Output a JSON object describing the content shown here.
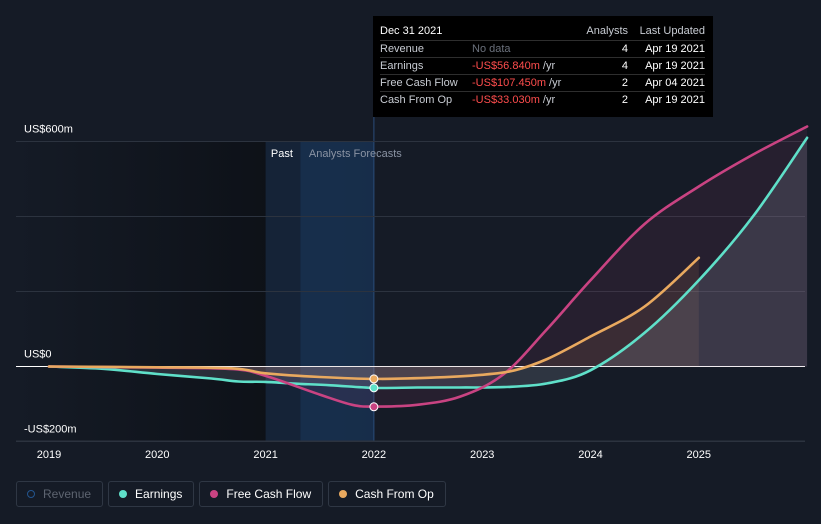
{
  "tooltip": {
    "date": "Dec 31 2021",
    "col_analysts": "Analysts",
    "col_updated": "Last Updated",
    "rows": [
      {
        "name": "Revenue",
        "value": "No data",
        "unit": "",
        "analysts": "4",
        "updated": "Apr 19 2021"
      },
      {
        "name": "Earnings",
        "value": "-US$56.840m",
        "unit": "/yr",
        "analysts": "4",
        "updated": "Apr 19 2021"
      },
      {
        "name": "Free Cash Flow",
        "value": "-US$107.450m",
        "unit": "/yr",
        "analysts": "2",
        "updated": "Apr 04 2021"
      },
      {
        "name": "Cash From Op",
        "value": "-US$33.030m",
        "unit": "/yr",
        "analysts": "2",
        "updated": "Apr 19 2021"
      }
    ]
  },
  "legend": [
    {
      "label": "Revenue",
      "color": "#2a6ebb",
      "active": false
    },
    {
      "label": "Earnings",
      "color": "#5fe0c9",
      "active": true
    },
    {
      "label": "Free Cash Flow",
      "color": "#c94382",
      "active": true
    },
    {
      "label": "Cash From Op",
      "color": "#e9a95f",
      "active": true
    }
  ],
  "chart_data": {
    "type": "line",
    "ylim": [
      -200,
      600
    ],
    "y_tick_labels": [
      "US$600m",
      "US$0",
      "-US$200m"
    ],
    "x_tick_labels": [
      "2019",
      "2020",
      "2021",
      "2022",
      "2023",
      "2024",
      "2025"
    ],
    "past_label": "Past",
    "forecast_label": "Analysts Forecasts",
    "grid": true,
    "series": [
      {
        "name": "Earnings",
        "color": "#5fe0c9",
        "x": [
          2019.0,
          2019.5,
          2020.0,
          2020.5,
          2020.75,
          2021.0,
          2021.3,
          2021.6,
          2022.0,
          2022.4,
          2022.8,
          2023.2,
          2023.6,
          2024.0,
          2024.5,
          2025.0,
          2025.5,
          2026.0
        ],
        "y": [
          0,
          -6,
          -20,
          -32,
          -40,
          -41,
          -46,
          -50,
          -57,
          -56,
          -56,
          -55,
          -45,
          -10,
          90,
          230,
          400,
          610
        ]
      },
      {
        "name": "Free Cash Flow",
        "color": "#c94382",
        "x": [
          2019.0,
          2020.0,
          2020.7,
          2021.0,
          2021.5,
          2021.8,
          2022.0,
          2022.4,
          2022.8,
          2023.2,
          2023.6,
          2024.0,
          2024.5,
          2025.0,
          2025.5,
          2026.0
        ],
        "y": [
          0,
          -3,
          -7,
          -25,
          -75,
          -102,
          -107,
          -102,
          -80,
          -20,
          100,
          230,
          380,
          480,
          565,
          640
        ]
      },
      {
        "name": "Cash From Op",
        "color": "#e9a95f",
        "x": [
          2019.0,
          2020.0,
          2020.7,
          2021.0,
          2021.5,
          2022.0,
          2022.5,
          2023.0,
          2023.3,
          2023.6,
          2024.0,
          2024.5,
          2025.0
        ],
        "y": [
          0,
          -2,
          -5,
          -18,
          -28,
          -33,
          -30,
          -22,
          -10,
          20,
          80,
          160,
          290
        ]
      }
    ],
    "markers": [
      {
        "series": "Cash From Op",
        "x": 2022.0,
        "y": -33.03
      },
      {
        "series": "Earnings",
        "x": 2022.0,
        "y": -56.84
      },
      {
        "series": "Free Cash Flow",
        "x": 2022.0,
        "y": -107.45
      }
    ]
  }
}
